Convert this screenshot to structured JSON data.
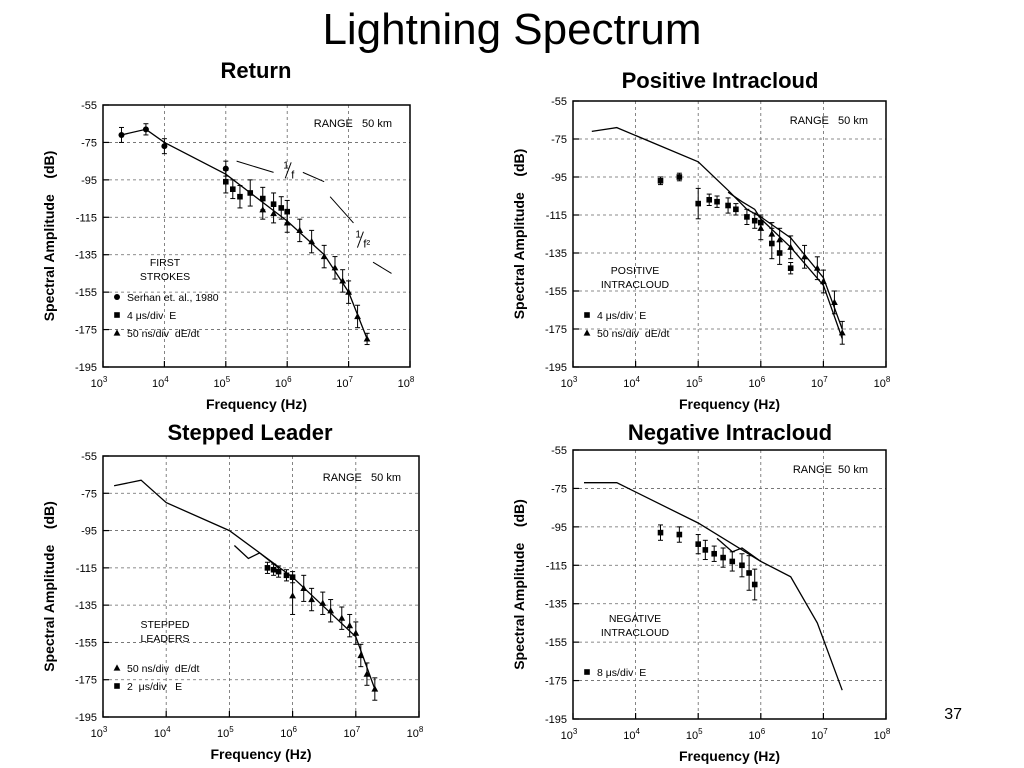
{
  "slide": {
    "title": "Lightning Spectrum",
    "page_number": "37"
  },
  "chart_data": [
    {
      "type": "scatter",
      "title": "Return",
      "xlabel": "Frequency (Hz)",
      "ylabel": "Spectral Amplitude    (dB)",
      "x_scale": "log",
      "xlim": [
        1000,
        100000000
      ],
      "ylim": [
        -195,
        -55
      ],
      "x_ticks": [
        {
          "value": 1000,
          "base": "10",
          "exp": "3"
        },
        {
          "value": 10000,
          "base": "10",
          "exp": "4"
        },
        {
          "value": 100000,
          "base": "10",
          "exp": "5"
        },
        {
          "value": 1000000,
          "base": "10",
          "exp": "6"
        },
        {
          "value": 10000000,
          "base": "10",
          "exp": "7"
        },
        {
          "value": 100000000,
          "base": "10",
          "exp": "8"
        }
      ],
      "y_ticks": [
        -55,
        -75,
        -95,
        -115,
        -135,
        -155,
        -175,
        -195
      ],
      "grid": true,
      "range_label": "RANGE   50 km",
      "category_label": [
        "FIRST",
        "STROKES"
      ],
      "legend": [
        {
          "marker": "circle",
          "label": "Serhan et. al., 1980"
        },
        {
          "marker": "square",
          "label": "4 μs/div  E"
        },
        {
          "marker": "triangle",
          "label": "50 ns/div  dE/dt"
        }
      ],
      "slope_labels": [
        {
          "num": "1",
          "den": "f",
          "x": 1000000,
          "y": -91
        },
        {
          "num": "1",
          "den": "f²",
          "x": 15000000,
          "y": -128
        }
      ],
      "slope_lines": [
        {
          "x": [
            150000,
            600000
          ],
          "y": [
            -85,
            -91
          ]
        },
        {
          "x": [
            1800000,
            4000000
          ],
          "y": [
            -91,
            -96
          ]
        },
        {
          "x": [
            5000000,
            12000000
          ],
          "y": [
            -104,
            -118
          ]
        },
        {
          "x": [
            25000000,
            50000000
          ],
          "y": [
            -139,
            -145
          ]
        }
      ],
      "series": [
        {
          "marker": "circle",
          "x": [
            2000,
            5000,
            10000,
            100000
          ],
          "y": [
            -71,
            -68,
            -77,
            -89
          ],
          "err": [
            4,
            3,
            4,
            4
          ]
        },
        {
          "marker": "square",
          "x": [
            100000,
            130000,
            170000,
            250000,
            400000,
            600000,
            800000,
            1000000
          ],
          "y": [
            -96,
            -100,
            -104,
            -102,
            -105,
            -108,
            -110,
            -112
          ],
          "err": [
            6,
            5,
            6,
            7,
            6,
            6,
            6,
            6
          ]
        },
        {
          "marker": "triangle",
          "x": [
            400000,
            600000,
            1000000,
            1600000,
            2500000,
            4000000,
            6000000,
            8000000,
            10000000,
            14000000,
            20000000
          ],
          "y": [
            -111,
            -113,
            -118,
            -122,
            -128,
            -136,
            -142,
            -149,
            -155,
            -168,
            -180
          ],
          "err": [
            5,
            5,
            5,
            6,
            6,
            6,
            6,
            6,
            6,
            6,
            3
          ]
        }
      ],
      "line": {
        "x": [
          2000,
          5000,
          10000,
          100000,
          1000000,
          4000000,
          10000000,
          20000000
        ],
        "y": [
          -71,
          -68,
          -75,
          -92,
          -117,
          -135,
          -155,
          -180
        ]
      }
    },
    {
      "type": "scatter",
      "title": "Positive Intracloud",
      "xlabel": "Frequency (Hz)",
      "ylabel": "Spectral Amplitude    (dB)",
      "x_scale": "log",
      "xlim": [
        1000,
        100000000
      ],
      "ylim": [
        -195,
        -55
      ],
      "x_ticks": [
        {
          "value": 1000,
          "base": "10",
          "exp": "3"
        },
        {
          "value": 10000,
          "base": "10",
          "exp": "4"
        },
        {
          "value": 100000,
          "base": "10",
          "exp": "5"
        },
        {
          "value": 1000000,
          "base": "10",
          "exp": "6"
        },
        {
          "value": 10000000,
          "base": "10",
          "exp": "7"
        },
        {
          "value": 100000000,
          "base": "10",
          "exp": "8"
        }
      ],
      "y_ticks": [
        -55,
        -75,
        -95,
        -115,
        -135,
        -155,
        -175,
        -195
      ],
      "grid": true,
      "range_label": "RANGE   50 km",
      "category_label": [
        "POSITIVE",
        "INTRACLOUD"
      ],
      "legend": [
        {
          "marker": "square",
          "label": "4 μs/div  E"
        },
        {
          "marker": "triangle",
          "label": "50 ns/div  dE/dt"
        }
      ],
      "slope_labels": [],
      "slope_lines": [],
      "series": [
        {
          "marker": "square",
          "x": [
            25000,
            50000,
            100000,
            150000,
            200000,
            300000,
            400000,
            600000,
            800000,
            1000000,
            1500000,
            2000000,
            3000000
          ],
          "y": [
            -97,
            -95,
            -109,
            -107,
            -108,
            -110,
            -112,
            -116,
            -118,
            -119,
            -130,
            -135,
            -143
          ],
          "err": [
            2,
            2,
            8,
            3,
            3,
            4,
            3,
            4,
            4,
            4,
            8,
            6,
            3
          ]
        },
        {
          "marker": "triangle",
          "x": [
            1000000,
            1500000,
            2000000,
            3000000,
            5000000,
            8000000,
            10000000,
            15000000,
            20000000
          ],
          "y": [
            -122,
            -125,
            -128,
            -132,
            -137,
            -143,
            -150,
            -161,
            -177
          ],
          "err": [
            6,
            6,
            6,
            6,
            6,
            6,
            6,
            6,
            6
          ]
        }
      ],
      "lines": [
        {
          "x": [
            2000,
            5000,
            100000,
            300000,
            600000,
            1000000,
            3000000,
            10000000,
            20000000
          ],
          "y": [
            -71,
            -69,
            -87,
            -102,
            -112,
            -116,
            -127,
            -148,
            -175
          ]
        },
        {
          "x": [
            300000,
            500000,
            800000,
            1000000,
            3000000,
            10000000,
            20000000
          ],
          "y": [
            -103,
            -108,
            -112,
            -117,
            -132,
            -152,
            -180
          ]
        }
      ]
    },
    {
      "type": "scatter",
      "title": "Stepped Leader",
      "xlabel": "Frequency (Hz)",
      "ylabel": "Spectral Amplitude    (dB)",
      "x_scale": "log",
      "xlim": [
        1000,
        100000000
      ],
      "ylim": [
        -195,
        -55
      ],
      "x_ticks": [
        {
          "value": 1000,
          "base": "10",
          "exp": "3"
        },
        {
          "value": 10000,
          "base": "10",
          "exp": "4"
        },
        {
          "value": 100000,
          "base": "10",
          "exp": "5"
        },
        {
          "value": 1000000,
          "base": "10",
          "exp": "6"
        },
        {
          "value": 10000000,
          "base": "10",
          "exp": "7"
        },
        {
          "value": 100000000,
          "base": "10",
          "exp": "8"
        }
      ],
      "y_ticks": [
        -55,
        -75,
        -95,
        -115,
        -135,
        -155,
        -175,
        -195
      ],
      "grid": true,
      "range_label": "RANGE   50 km",
      "category_label": [
        "STEPPED",
        "LEADERS"
      ],
      "legend": [
        {
          "marker": "triangle",
          "label": "50 ns/div  dE/dt"
        },
        {
          "marker": "square",
          "label": "2  μs/div   E"
        }
      ],
      "slope_labels": [],
      "slope_lines": [],
      "series": [
        {
          "marker": "square",
          "x": [
            400000,
            500000,
            600000,
            800000,
            1000000
          ],
          "y": [
            -115,
            -116,
            -117,
            -119,
            -120
          ],
          "err": [
            3,
            3,
            3,
            3,
            3
          ]
        },
        {
          "marker": "triangle",
          "x": [
            1000000,
            1500000,
            2000000,
            3000000,
            4000000,
            6000000,
            8000000,
            10000000,
            12000000,
            15000000,
            20000000
          ],
          "y": [
            -130,
            -126,
            -132,
            -134,
            -138,
            -142,
            -146,
            -150,
            -162,
            -172,
            -180
          ],
          "err": [
            10,
            7,
            6,
            6,
            6,
            6,
            6,
            6,
            6,
            6,
            6
          ]
        }
      ],
      "lines": [
        {
          "x": [
            1500,
            4000,
            10000,
            100000,
            1000000,
            10000000,
            20000000
          ],
          "y": [
            -71,
            -68,
            -80,
            -95,
            -120,
            -152,
            -180
          ]
        },
        {
          "x": [
            120000,
            200000,
            300000,
            600000
          ],
          "y": [
            -103,
            -110,
            -107,
            -115
          ]
        }
      ]
    },
    {
      "type": "scatter",
      "title": "Negative Intracloud",
      "xlabel": "Frequency (Hz)",
      "ylabel": "Spectral Amplitude    (dB)",
      "x_scale": "log",
      "xlim": [
        1000,
        100000000
      ],
      "ylim": [
        -195,
        -55
      ],
      "x_ticks": [
        {
          "value": 1000,
          "base": "10",
          "exp": "3"
        },
        {
          "value": 10000,
          "base": "10",
          "exp": "4"
        },
        {
          "value": 100000,
          "base": "10",
          "exp": "5"
        },
        {
          "value": 1000000,
          "base": "10",
          "exp": "6"
        },
        {
          "value": 10000000,
          "base": "10",
          "exp": "7"
        },
        {
          "value": 100000000,
          "base": "10",
          "exp": "8"
        }
      ],
      "y_ticks": [
        -55,
        -75,
        -95,
        -115,
        -135,
        -155,
        -175,
        -195
      ],
      "grid": true,
      "range_label": "RANGE  50 km",
      "category_label": [
        "NEGATIVE",
        "INTRACLOUD"
      ],
      "legend": [
        {
          "marker": "square",
          "label": "8 μs/div  E"
        }
      ],
      "slope_labels": [],
      "slope_lines": [],
      "series": [
        {
          "marker": "square",
          "x": [
            25000,
            50000,
            100000,
            130000,
            180000,
            250000,
            350000,
            500000,
            650000,
            800000
          ],
          "y": [
            -98,
            -99,
            -104,
            -107,
            -109,
            -111,
            -113,
            -115,
            -119,
            -125
          ],
          "err": [
            4,
            4,
            5,
            5,
            4,
            5,
            5,
            6,
            9,
            8
          ]
        }
      ],
      "lines": [
        {
          "x": [
            1500,
            5000,
            100000,
            1000000,
            3000000,
            8000000,
            20000000
          ],
          "y": [
            -72,
            -72,
            -93,
            -113,
            -121,
            -145,
            -180
          ]
        },
        {
          "x": [
            200000,
            350000,
            500000,
            1000000
          ],
          "y": [
            -101,
            -108,
            -106,
            -113
          ]
        }
      ]
    }
  ]
}
